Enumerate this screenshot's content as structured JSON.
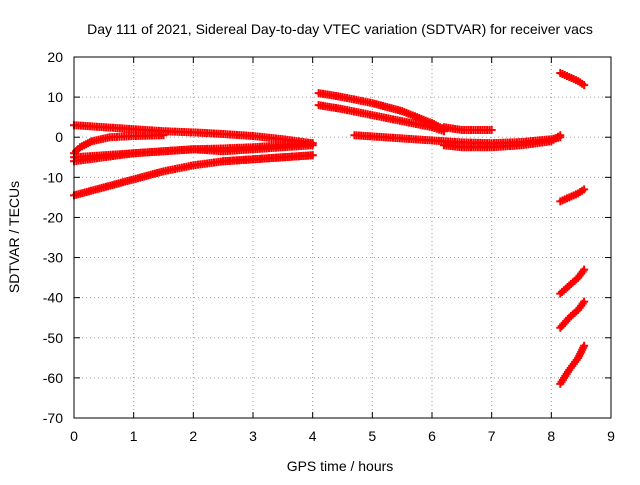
{
  "chart_data": {
    "type": "scatter",
    "title": "Day 111 of 2021, Sidereal Day-to-day VTEC variation (SDTVAR) for receiver vacs",
    "xlabel": "GPS time / hours",
    "ylabel": "SDTVAR / TECUs",
    "xlim": [
      0,
      9
    ],
    "ylim": [
      -70,
      20
    ],
    "xticks": [
      0,
      1,
      2,
      3,
      4,
      5,
      6,
      7,
      8,
      9
    ],
    "yticks": [
      -70,
      -60,
      -50,
      -40,
      -30,
      -20,
      -10,
      0,
      10,
      20
    ],
    "grid": true,
    "legend": "none",
    "marker": "plus",
    "color": "#ff0000",
    "series": [
      {
        "x": [
          0.0,
          0.5,
          1.0,
          1.5,
          2.0,
          2.5,
          3.0,
          3.5,
          4.0
        ],
        "y": [
          3.0,
          2.5,
          2.0,
          1.5,
          1.2,
          0.8,
          0.3,
          -0.5,
          -1.5
        ]
      },
      {
        "x": [
          0.0,
          0.1,
          0.3,
          0.6,
          1.0,
          1.5
        ],
        "y": [
          -4.0,
          -2.5,
          -1.0,
          0.0,
          0.3,
          0.5
        ]
      },
      {
        "x": [
          0.0,
          0.5,
          1.0,
          1.5,
          2.0,
          2.5,
          3.0,
          3.5,
          4.0
        ],
        "y": [
          -5.0,
          -4.5,
          -4.0,
          -3.5,
          -3.0,
          -2.8,
          -2.5,
          -2.0,
          -1.5
        ]
      },
      {
        "x": [
          0.0,
          0.5,
          1.0,
          1.5,
          2.0,
          2.5,
          3.0,
          3.5,
          4.0
        ],
        "y": [
          -6.0,
          -5.0,
          -4.0,
          -3.5,
          -3.0,
          -3.5,
          -3.0,
          -2.5,
          -2.0
        ]
      },
      {
        "x": [
          2.5,
          3.0,
          3.5,
          4.0
        ],
        "y": [
          -6.0,
          -5.5,
          -5.0,
          -4.5
        ]
      },
      {
        "x": [
          0.0,
          0.5,
          1.0,
          1.5,
          2.0,
          2.5,
          3.0,
          3.5,
          4.0
        ],
        "y": [
          -14.5,
          -12.5,
          -10.5,
          -8.5,
          -7.0,
          -6.0,
          -5.5,
          -5.0,
          -4.5
        ]
      },
      {
        "x": [
          4.1,
          4.5,
          5.0,
          5.5,
          6.0,
          6.2
        ],
        "y": [
          11.0,
          10.0,
          8.5,
          6.5,
          3.5,
          2.0
        ]
      },
      {
        "x": [
          4.1,
          4.5,
          5.0,
          5.5,
          6.0,
          6.2
        ],
        "y": [
          8.0,
          7.0,
          5.5,
          4.0,
          2.5,
          1.5
        ]
      },
      {
        "x": [
          6.2,
          6.5,
          7.0
        ],
        "y": [
          2.5,
          1.8,
          1.8
        ]
      },
      {
        "x": [
          4.7,
          5.0,
          5.5,
          6.0,
          6.5,
          7.0,
          7.5,
          8.0,
          8.15
        ],
        "y": [
          0.5,
          0.2,
          -0.3,
          -0.8,
          -1.3,
          -1.5,
          -1.2,
          -0.5,
          0.0
        ]
      },
      {
        "x": [
          6.2,
          6.5,
          7.0,
          7.5,
          8.0,
          8.15
        ],
        "y": [
          -2.0,
          -2.5,
          -2.5,
          -2.0,
          -1.0,
          0.5
        ]
      },
      {
        "x": [
          8.15,
          8.3,
          8.45,
          8.55
        ],
        "y": [
          16.0,
          15.0,
          14.0,
          13.0
        ]
      },
      {
        "x": [
          8.15,
          8.3,
          8.45,
          8.55
        ],
        "y": [
          -16.0,
          -15.0,
          -14.0,
          -13.0
        ]
      },
      {
        "x": [
          8.15,
          8.3,
          8.45,
          8.55
        ],
        "y": [
          -39.0,
          -37.0,
          -35.0,
          -33.0
        ]
      },
      {
        "x": [
          8.15,
          8.3,
          8.45,
          8.55
        ],
        "y": [
          -47.5,
          -45.0,
          -43.0,
          -41.0
        ]
      },
      {
        "x": [
          8.15,
          8.3,
          8.45,
          8.55
        ],
        "y": [
          -61.5,
          -58.0,
          -55.0,
          -52.0
        ]
      }
    ]
  }
}
